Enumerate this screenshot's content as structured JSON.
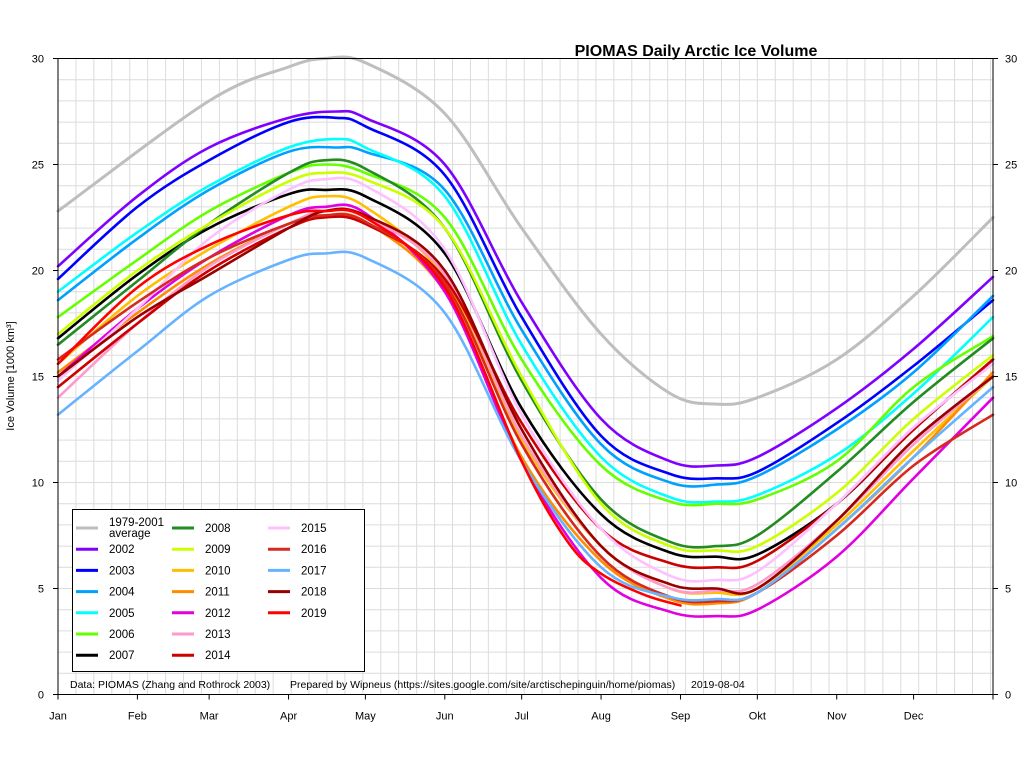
{
  "chart_data": {
    "type": "line",
    "title": "PIOMAS Daily Arctic Ice Volume",
    "ylabel": "Ice Volume [1000 km³]",
    "xlabel": "",
    "ylim": [
      0,
      30
    ],
    "yticks": [
      "0",
      "5",
      "10",
      "15",
      "20",
      "25",
      "30"
    ],
    "x_unit": "day of year",
    "xlim": [
      1,
      366
    ],
    "month_labels": [
      "Jan",
      "Feb",
      "Mar",
      "Apr",
      "May",
      "Jun",
      "Jul",
      "Aug",
      "Sep",
      "Okt",
      "Nov",
      "Dec"
    ],
    "month_starts": [
      1,
      32,
      60,
      91,
      121,
      152,
      182,
      213,
      244,
      274,
      305,
      335
    ],
    "grid": true,
    "legend_placement": "bottom-left",
    "footer": {
      "data_credit": "Data: PIOMAS (Zhang and Rothrock 2003)",
      "prepared_by": "Prepared by Wipneus (https://sites.google.com/site/arctischepinguin/home/piomas)",
      "date": "2019-08-04"
    },
    "series": [
      {
        "name": "1979-2001\naverage",
        "color": "#bebebe",
        "x": [
          1,
          60,
          91,
          105,
          121,
          152,
          182,
          213,
          240,
          258,
          274,
          305,
          335,
          366
        ],
        "values": [
          22.8,
          28.0,
          29.6,
          30.0,
          29.8,
          27.4,
          22.0,
          17.0,
          14.2,
          13.7,
          14.0,
          15.8,
          18.8,
          22.5
        ]
      },
      {
        "name": "2002",
        "color": "#8000ff",
        "x": [
          1,
          32,
          60,
          91,
          110,
          121,
          152,
          182,
          213,
          240,
          258,
          274,
          305,
          335,
          366
        ],
        "values": [
          20.2,
          23.5,
          25.8,
          27.2,
          27.5,
          27.2,
          25.0,
          18.5,
          13.0,
          11.0,
          10.8,
          11.2,
          13.5,
          16.3,
          19.7
        ]
      },
      {
        "name": "2003",
        "color": "#0000ff",
        "x": [
          1,
          32,
          60,
          91,
          110,
          121,
          152,
          182,
          213,
          240,
          258,
          274,
          305,
          335,
          366
        ],
        "values": [
          19.6,
          23.0,
          25.2,
          27.0,
          27.2,
          26.8,
          24.5,
          17.8,
          12.2,
          10.4,
          10.2,
          10.5,
          12.8,
          15.5,
          18.6
        ]
      },
      {
        "name": "2004",
        "color": "#00a0ff",
        "x": [
          1,
          32,
          60,
          91,
          110,
          121,
          152,
          182,
          213,
          240,
          258,
          274,
          305,
          335,
          366
        ],
        "values": [
          18.6,
          21.5,
          23.8,
          25.6,
          25.8,
          25.6,
          23.8,
          17.2,
          11.8,
          10.0,
          9.9,
          10.3,
          12.5,
          15.2,
          18.8
        ]
      },
      {
        "name": "2005",
        "color": "#00ffff",
        "x": [
          1,
          32,
          60,
          91,
          110,
          121,
          152,
          182,
          213,
          240,
          258,
          274,
          305,
          335,
          366
        ],
        "values": [
          19.0,
          21.8,
          24.0,
          25.8,
          26.2,
          25.8,
          23.5,
          16.5,
          11.2,
          9.3,
          9.1,
          9.4,
          11.3,
          14.2,
          17.8
        ]
      },
      {
        "name": "2006",
        "color": "#66ff00",
        "x": [
          1,
          32,
          60,
          91,
          105,
          121,
          152,
          182,
          213,
          240,
          258,
          274,
          305,
          335,
          366
        ],
        "values": [
          17.8,
          20.5,
          22.8,
          24.6,
          25.0,
          24.6,
          22.5,
          15.8,
          10.8,
          9.1,
          9.0,
          9.2,
          11.0,
          14.5,
          16.9
        ]
      },
      {
        "name": "2007",
        "color": "#000000",
        "x": [
          1,
          32,
          60,
          91,
          105,
          121,
          152,
          182,
          213,
          240,
          258,
          274,
          305,
          335,
          366
        ],
        "values": [
          16.8,
          19.8,
          22.0,
          23.6,
          23.8,
          23.5,
          20.8,
          13.5,
          8.5,
          6.7,
          6.5,
          6.6,
          9.0,
          12.5,
          15.8
        ]
      },
      {
        "name": "2008",
        "color": "#228b22",
        "x": [
          1,
          32,
          60,
          91,
          105,
          121,
          152,
          182,
          213,
          240,
          258,
          274,
          305,
          335,
          366
        ],
        "values": [
          16.5,
          19.5,
          22.2,
          24.6,
          25.2,
          24.8,
          22.0,
          14.8,
          9.2,
          7.2,
          7.0,
          7.5,
          10.5,
          13.8,
          16.8
        ]
      },
      {
        "name": "2009",
        "color": "#ccff00",
        "x": [
          1,
          32,
          60,
          91,
          105,
          121,
          152,
          182,
          213,
          240,
          258,
          274,
          305,
          335,
          366
        ],
        "values": [
          17.0,
          20.0,
          22.2,
          24.2,
          24.6,
          24.3,
          22.0,
          15.0,
          9.0,
          7.0,
          6.8,
          7.0,
          9.5,
          13.0,
          16.0
        ]
      },
      {
        "name": "2010",
        "color": "#ffbf00",
        "x": [
          1,
          32,
          60,
          91,
          105,
          121,
          152,
          182,
          213,
          240,
          258,
          274,
          305,
          335,
          366
        ],
        "values": [
          15.6,
          18.8,
          21.0,
          23.0,
          23.5,
          23.0,
          19.6,
          12.0,
          7.0,
          5.0,
          4.8,
          5.0,
          8.0,
          11.5,
          15.0
        ]
      },
      {
        "name": "2011",
        "color": "#ff8c00",
        "x": [
          1,
          32,
          60,
          91,
          105,
          121,
          152,
          182,
          213,
          240,
          258,
          274,
          305,
          335,
          366
        ],
        "values": [
          15.2,
          18.0,
          20.3,
          22.2,
          22.6,
          22.3,
          19.0,
          11.2,
          6.3,
          4.5,
          4.3,
          4.8,
          7.8,
          11.2,
          15.2
        ]
      },
      {
        "name": "2012",
        "color": "#e000e0",
        "x": [
          1,
          32,
          60,
          91,
          105,
          121,
          152,
          182,
          213,
          240,
          258,
          274,
          305,
          335,
          366
        ],
        "values": [
          15.0,
          18.2,
          20.6,
          22.6,
          23.0,
          22.7,
          19.0,
          11.0,
          5.5,
          3.9,
          3.7,
          4.0,
          6.5,
          10.2,
          14.0
        ]
      },
      {
        "name": "2013",
        "color": "#ff99cc",
        "x": [
          1,
          32,
          60,
          91,
          105,
          121,
          152,
          182,
          213,
          240,
          258,
          274,
          305,
          335,
          366
        ],
        "values": [
          14.0,
          17.5,
          20.2,
          22.2,
          22.8,
          22.5,
          19.8,
          12.2,
          7.0,
          5.0,
          4.9,
          5.2,
          8.2,
          11.8,
          15.0
        ]
      },
      {
        "name": "2014",
        "color": "#cc0000",
        "x": [
          1,
          32,
          60,
          91,
          105,
          121,
          152,
          182,
          213,
          240,
          258,
          274,
          305,
          335,
          366
        ],
        "values": [
          14.5,
          17.5,
          20.0,
          22.0,
          22.5,
          22.2,
          19.6,
          12.8,
          7.8,
          6.2,
          6.0,
          6.3,
          9.0,
          12.5,
          15.8
        ]
      },
      {
        "name": "2015",
        "color": "#ffc0ff",
        "x": [
          1,
          32,
          60,
          91,
          105,
          121,
          152,
          182,
          213,
          240,
          258,
          274,
          305,
          335,
          366
        ],
        "values": [
          14.8,
          18.2,
          21.5,
          23.8,
          24.3,
          24.0,
          21.0,
          13.2,
          7.8,
          5.6,
          5.4,
          5.8,
          9.0,
          12.6,
          15.6
        ]
      },
      {
        "name": "2016",
        "color": "#d42a20",
        "x": [
          1,
          32,
          60,
          91,
          105,
          121,
          152,
          182,
          213,
          240,
          258,
          274,
          305,
          335,
          366
        ],
        "values": [
          15.8,
          18.5,
          20.6,
          22.2,
          22.6,
          22.3,
          19.4,
          11.8,
          6.5,
          4.6,
          4.4,
          4.8,
          7.5,
          10.8,
          13.2
        ]
      },
      {
        "name": "2017",
        "color": "#66b3ff",
        "x": [
          1,
          32,
          60,
          91,
          105,
          121,
          152,
          182,
          213,
          240,
          258,
          274,
          305,
          335,
          366
        ],
        "values": [
          13.2,
          16.2,
          18.8,
          20.5,
          20.8,
          20.6,
          18.0,
          11.0,
          6.0,
          4.6,
          4.5,
          4.8,
          7.8,
          11.2,
          14.5
        ]
      },
      {
        "name": "2018",
        "color": "#990000",
        "x": [
          1,
          32,
          60,
          91,
          105,
          121,
          152,
          182,
          213,
          240,
          258,
          274,
          305,
          335,
          366
        ],
        "values": [
          15.0,
          17.8,
          19.8,
          22.0,
          22.8,
          22.6,
          20.0,
          12.5,
          7.0,
          5.2,
          5.0,
          5.0,
          8.2,
          12.0,
          15.0
        ]
      },
      {
        "name": "2019",
        "color": "#ff0000",
        "x": [
          1,
          32,
          60,
          91,
          105,
          121,
          152,
          182,
          200,
          213,
          230,
          244
        ],
        "values": [
          15.6,
          19.2,
          21.2,
          22.6,
          22.8,
          22.5,
          19.2,
          11.0,
          7.2,
          5.7,
          4.7,
          4.2
        ]
      }
    ]
  }
}
